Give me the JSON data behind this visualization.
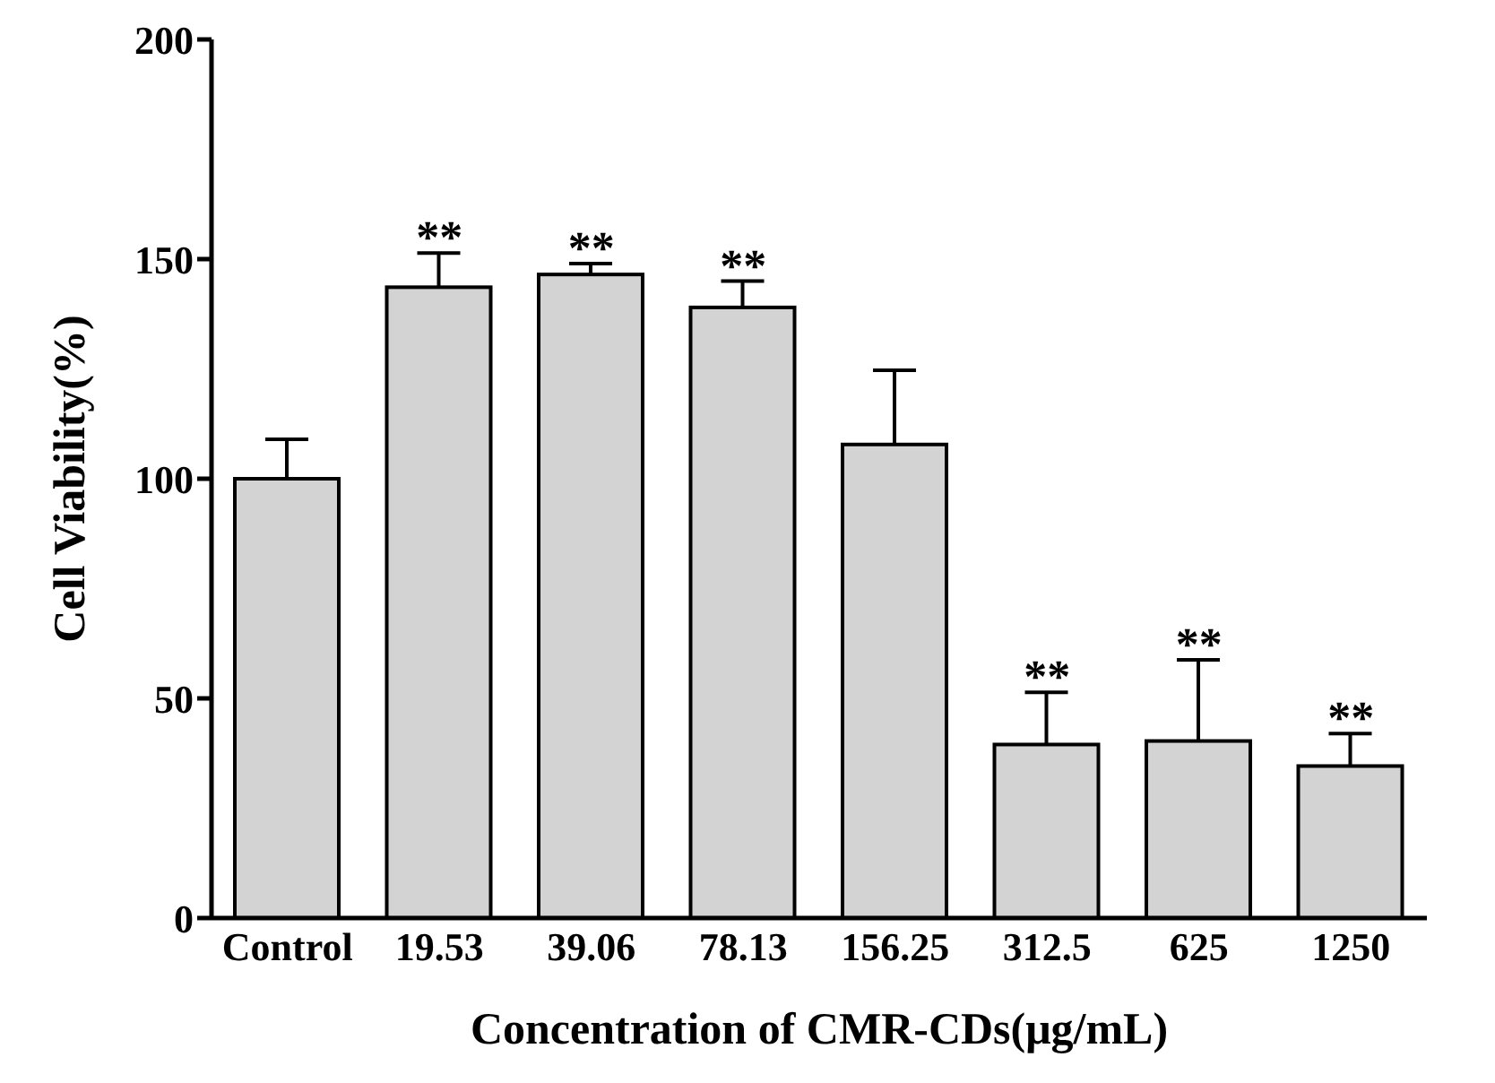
{
  "chart_data": {
    "type": "bar",
    "xlabel": "Concentration of CMR-CDs(μg/mL)",
    "ylabel": "Cell Viability(%)",
    "categories": [
      "Control",
      "19.53",
      "39.06",
      "78.13",
      "156.25",
      "312.5",
      "625",
      "1250"
    ],
    "values": [
      100,
      143.6,
      146.5,
      139,
      107.8,
      39.5,
      40.3,
      34.6
    ],
    "errors": [
      [
        100,
        109
      ],
      [
        143.6,
        151.4
      ],
      [
        146.5,
        149
      ],
      [
        139,
        145
      ],
      [
        107.8,
        124.7
      ],
      [
        39.5,
        51.4
      ],
      [
        40.3,
        58.8
      ],
      [
        34.6,
        42
      ]
    ],
    "color": "#d3d3d3",
    "ylim": [
      0,
      200
    ],
    "yticks": [
      0,
      50,
      100,
      150,
      200
    ],
    "grid": false,
    "annotations": [
      {
        "text": "**",
        "x": "19.53",
        "y": 151.4
      },
      {
        "text": "**",
        "x": "39.06",
        "y": 149
      },
      {
        "text": "**",
        "x": "78.13",
        "y": 145
      },
      {
        "text": "**",
        "x": "312.5",
        "y": 51.4
      },
      {
        "text": "**",
        "x": "625",
        "y": 58.8
      },
      {
        "text": "**",
        "x": "1250",
        "y": 42
      }
    ]
  }
}
